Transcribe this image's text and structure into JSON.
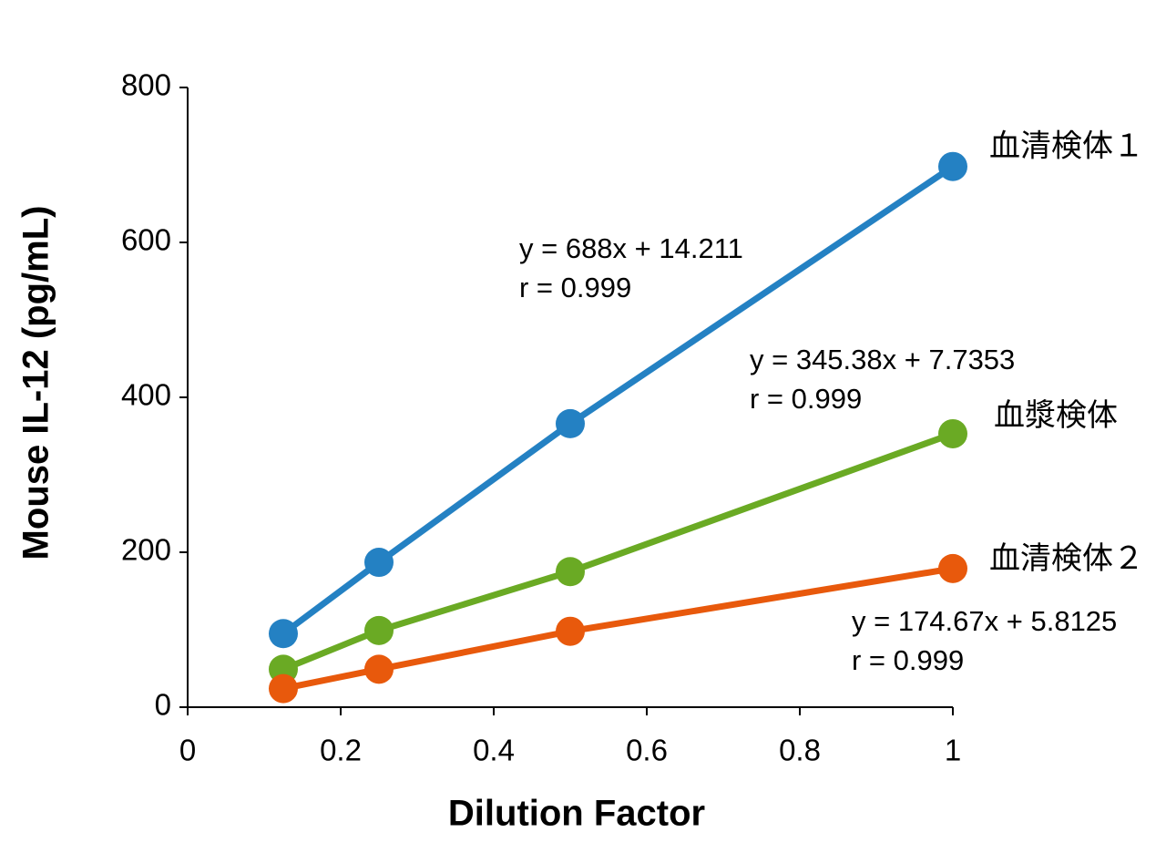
{
  "chart_data": {
    "type": "line",
    "x_label": "Dilution Factor",
    "y_label": "Mouse IL-12 (pg/mL)",
    "x": [
      0.125,
      0.25,
      0.5,
      1
    ],
    "series": [
      {
        "name": "血清検体１",
        "color": "#2481c3",
        "values": [
          95,
          187,
          366,
          698
        ]
      },
      {
        "name": "血漿検体",
        "color": "#6aaa24",
        "values": [
          49,
          99,
          175,
          353
        ]
      },
      {
        "name": "血清検体２",
        "color": "#e8590c",
        "values": [
          24,
          49,
          98,
          179
        ]
      }
    ],
    "annotations": [
      {
        "equation": "y = 688x + 14.211",
        "r": "r = 0.999"
      },
      {
        "equation": "y = 345.38x + 7.7353",
        "r": "r = 0.999"
      },
      {
        "equation": "y = 174.67x + 5.8125",
        "r": "r = 0.999"
      }
    ],
    "xlim": [
      0,
      1
    ],
    "xticks": [
      0,
      0.2,
      0.4,
      0.6,
      0.8,
      1
    ],
    "ylim": [
      0,
      800
    ],
    "yticks": [
      0,
      200,
      400,
      600,
      800
    ],
    "grid": false
  }
}
